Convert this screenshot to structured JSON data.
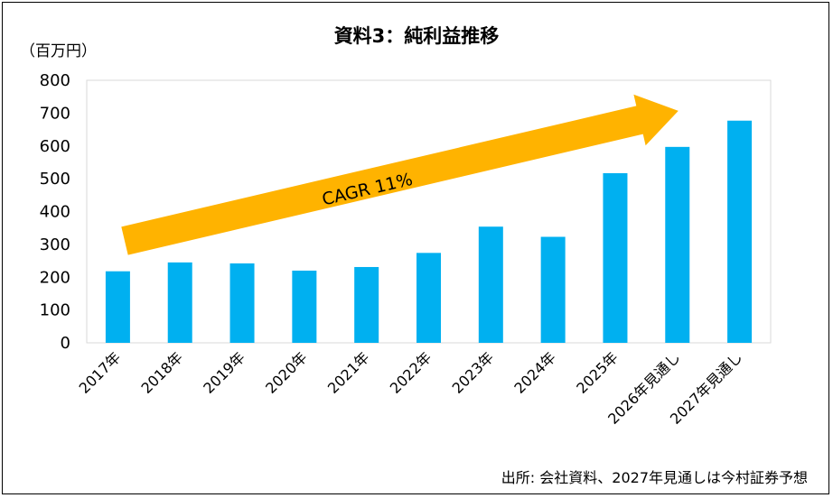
{
  "chart_data": {
    "type": "bar",
    "title": "資料3：純利益推移",
    "unit_label": "（百万円）",
    "categories": [
      "2017年",
      "2018年",
      "2019年",
      "2020年",
      "2021年",
      "2022年",
      "2023年",
      "2024年",
      "2025年",
      "2026年見通し",
      "2027年見通し"
    ],
    "values": [
      218,
      245,
      242,
      220,
      231,
      274,
      354,
      323,
      517,
      597,
      677
    ],
    "ylim": [
      0,
      800
    ],
    "yticks": [
      0,
      100,
      200,
      300,
      400,
      500,
      600,
      700,
      800
    ],
    "grid": false,
    "legend": "none",
    "bar_color": "#00B0F0",
    "annotation": {
      "text": "CAGR  11%",
      "arrow_color": "#FFB300"
    },
    "source": "出所: 会社資料、2027年見通しは今村証券予想"
  }
}
